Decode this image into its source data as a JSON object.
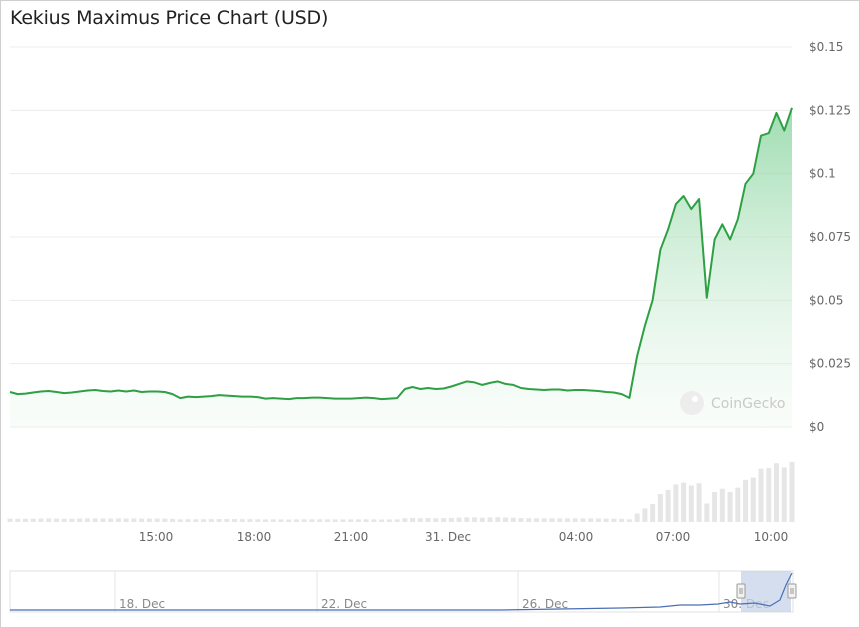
{
  "chart_data": {
    "type": "area",
    "title": "Kekius Maximus Price Chart (USD)",
    "watermark": "CoinGecko",
    "yticks": [
      "$0.15",
      "$0.125",
      "$0.1",
      "$0.075",
      "$0.05",
      "$0.025",
      "$0"
    ],
    "ylim": [
      0,
      0.15
    ],
    "xticks": [
      "15:00",
      "18:00",
      "21:00",
      "31. Dec",
      "04:00",
      "07:00",
      "10:00"
    ],
    "navigator_ticks": [
      "18. Dec",
      "22. Dec",
      "26. Dec",
      "30. Dec"
    ],
    "colors": {
      "line": "#2ea043",
      "area_top": "#7fd197",
      "volume": "#e6e6e6",
      "navigator_line": "#4a6fb5"
    },
    "series": [
      {
        "values": [
          0.0138,
          0.013,
          0.0132,
          0.0136,
          0.014,
          0.0142,
          0.0138,
          0.0134,
          0.0136,
          0.014,
          0.0144,
          0.0146,
          0.0142,
          0.014,
          0.0144,
          0.014,
          0.0144,
          0.0138,
          0.014,
          0.014,
          0.0138,
          0.013,
          0.0114,
          0.012,
          0.0118,
          0.012,
          0.0122,
          0.0126,
          0.0124,
          0.0122,
          0.012,
          0.012,
          0.0118,
          0.0112,
          0.0114,
          0.0112,
          0.011,
          0.0114,
          0.0114,
          0.0116,
          0.0116,
          0.0114,
          0.0112,
          0.0112,
          0.0112,
          0.0114,
          0.0116,
          0.0114,
          0.011,
          0.0112,
          0.0114,
          0.015,
          0.0158,
          0.015,
          0.0154,
          0.015,
          0.0152,
          0.016,
          0.017,
          0.018,
          0.0176,
          0.0166,
          0.0174,
          0.018,
          0.017,
          0.0166,
          0.0154,
          0.015,
          0.0148,
          0.0146,
          0.0148,
          0.0148,
          0.0144,
          0.0146,
          0.0146,
          0.0144,
          0.0142,
          0.0138,
          0.0136,
          0.013,
          0.0115,
          0.028,
          0.04,
          0.05,
          0.07,
          0.078,
          0.088,
          0.0912,
          0.086,
          0.09,
          0.051,
          0.074,
          0.08,
          0.074,
          0.082,
          0.096,
          0.1,
          0.115,
          0.116,
          0.124,
          0.117,
          0.126
        ]
      }
    ]
  }
}
